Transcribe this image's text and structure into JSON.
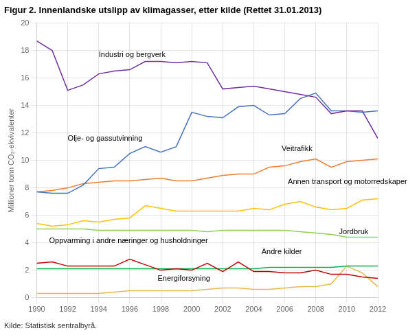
{
  "chart_data": {
    "type": "line",
    "title": "Figur 2. Innenlandske utslipp av klimagasser, etter kilde (Rettet 31.01.2013)",
    "ylabel": "Millioner tonn CO₂-ekvivalenter",
    "source": "Kilde: Statistisk sentralbyrå.",
    "x": [
      1990,
      1991,
      1992,
      1993,
      1994,
      1995,
      1996,
      1997,
      1998,
      1999,
      2000,
      2001,
      2002,
      2003,
      2004,
      2005,
      2006,
      2007,
      2008,
      2009,
      2010,
      2011,
      2012
    ],
    "series": [
      {
        "name": "Industri og bergverk",
        "color": "#7030A0",
        "values": [
          18.7,
          18.0,
          15.1,
          15.5,
          16.3,
          16.5,
          16.6,
          17.2,
          17.2,
          17.1,
          17.2,
          17.1,
          15.2,
          15.3,
          15.4,
          15.2,
          15.0,
          14.8,
          14.6,
          13.4,
          13.6,
          13.6,
          11.6
        ]
      },
      {
        "name": "Olje- og gassutvinning",
        "color": "#4472C4",
        "values": [
          7.7,
          7.6,
          7.6,
          8.2,
          9.4,
          9.5,
          10.5,
          11.0,
          10.6,
          11.0,
          13.5,
          13.2,
          13.1,
          13.9,
          14.0,
          13.3,
          13.4,
          14.5,
          14.9,
          13.6,
          13.6,
          13.5,
          13.6
        ]
      },
      {
        "name": "Veitrafikk",
        "color": "#ED7D31",
        "values": [
          7.7,
          7.8,
          8.0,
          8.3,
          8.4,
          8.5,
          8.5,
          8.6,
          8.7,
          8.5,
          8.5,
          8.7,
          8.9,
          9.0,
          9.0,
          9.5,
          9.6,
          9.9,
          10.1,
          9.5,
          9.9,
          10.0,
          10.1
        ]
      },
      {
        "name": "Annen transport og motorredskaper",
        "color": "#FFC000",
        "values": [
          5.4,
          5.2,
          5.3,
          5.6,
          5.5,
          5.7,
          5.8,
          6.7,
          6.5,
          6.3,
          6.3,
          6.3,
          6.3,
          6.3,
          6.5,
          6.4,
          6.8,
          7.0,
          6.6,
          6.4,
          6.5,
          7.1,
          7.2
        ]
      },
      {
        "name": "Jordbruk",
        "color": "#92D050",
        "values": [
          5.0,
          5.0,
          5.0,
          5.0,
          4.9,
          4.9,
          4.9,
          4.9,
          4.9,
          4.9,
          4.9,
          4.8,
          4.9,
          4.9,
          4.9,
          4.9,
          4.9,
          4.8,
          4.7,
          4.6,
          4.4,
          4.4,
          4.4
        ]
      },
      {
        "name": "Oppvarming i andre næringer og husholdninger",
        "color": "#C00000",
        "values": [
          2.5,
          2.6,
          2.3,
          2.3,
          2.3,
          2.3,
          2.8,
          2.4,
          2.0,
          2.1,
          2.0,
          2.5,
          1.9,
          2.6,
          1.9,
          1.9,
          1.8,
          1.8,
          2.0,
          1.7,
          1.7,
          1.5,
          1.4
        ]
      },
      {
        "name": "Andre kilder",
        "color": "#00B050",
        "values": [
          2.1,
          2.1,
          2.1,
          2.1,
          2.1,
          2.1,
          2.1,
          2.1,
          2.1,
          2.1,
          2.1,
          2.1,
          2.1,
          2.1,
          2.1,
          2.2,
          2.2,
          2.2,
          2.2,
          2.2,
          2.3,
          2.3,
          2.3
        ]
      },
      {
        "name": "Energiforsyning",
        "color": "#E8B84B",
        "values": [
          0.3,
          0.3,
          0.3,
          0.3,
          0.3,
          0.4,
          0.5,
          0.5,
          0.5,
          0.5,
          0.5,
          0.6,
          0.7,
          0.7,
          0.6,
          0.6,
          0.7,
          0.8,
          0.8,
          1.0,
          2.3,
          1.8,
          0.8
        ]
      }
    ],
    "annotations": [
      {
        "text": "Industri og bergverk",
        "x": 1994.0,
        "y": 17.4
      },
      {
        "text": "Olje- og gassutvinning",
        "x": 1992.0,
        "y": 11.3
      },
      {
        "text": "Veitrafikk",
        "x": 2005.8,
        "y": 10.55
      },
      {
        "text": "Annen transport og motorredskaper",
        "x": 2006.2,
        "y": 8.15
      },
      {
        "text": "Jordbruk",
        "x": 2009.5,
        "y": 4.5
      },
      {
        "text": "Oppvarming i andre næringer og husholdninger",
        "x": 1990.8,
        "y": 3.85
      },
      {
        "text": "Andre kilder",
        "x": 2004.5,
        "y": 3.05
      },
      {
        "text": "Energiforsyning",
        "x": 1997.8,
        "y": 1.1
      }
    ],
    "xlim": [
      1990,
      2012
    ],
    "xticks": [
      1990,
      1992,
      1994,
      1996,
      1998,
      2000,
      2002,
      2004,
      2006,
      2008,
      2010,
      2012
    ],
    "ylim": [
      0,
      20
    ],
    "yticks": [
      0,
      2,
      4,
      6,
      8,
      10,
      12,
      14,
      16,
      18,
      20
    ],
    "grid": true
  }
}
